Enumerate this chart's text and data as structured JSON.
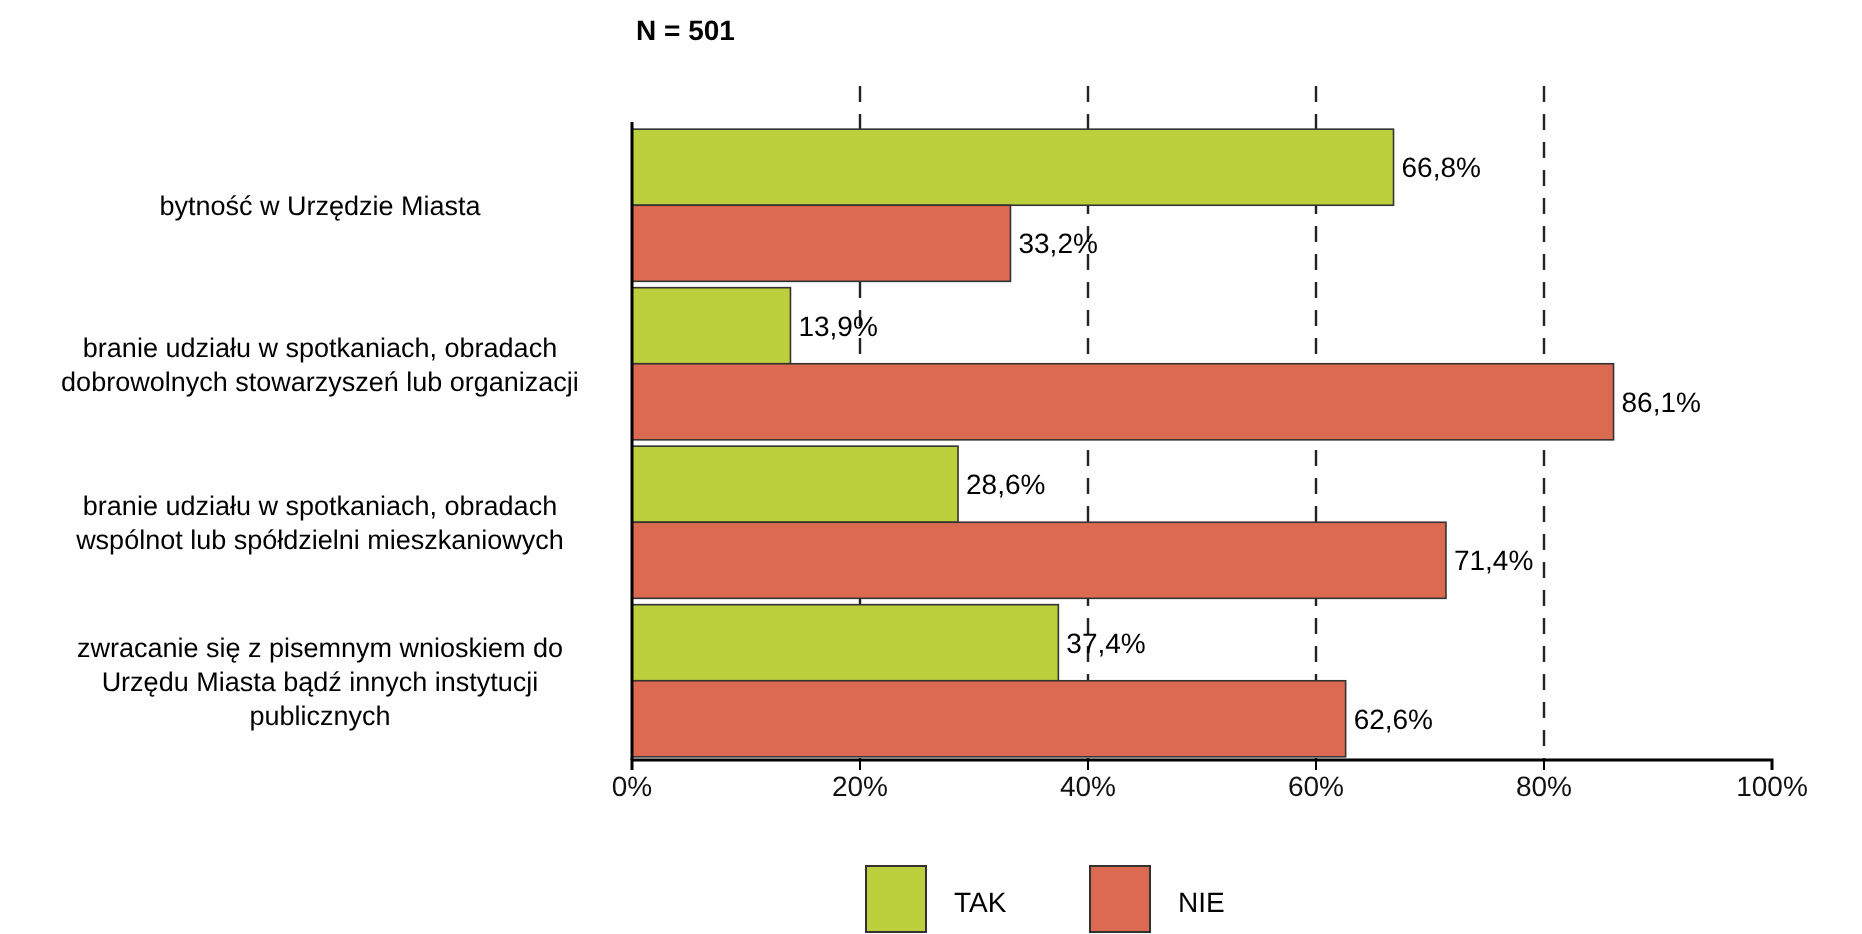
{
  "chart_data": {
    "type": "bar",
    "orientation": "horizontal",
    "title": "N = 501",
    "categories": [
      "bytność w Urzędzie Miasta",
      "branie udziału w spotkaniach, obradach dobrowolnych stowarzyszeń lub organizacji",
      "branie udziału w spotkaniach, obradach wspólnot lub spółdzielni mieszkaniowych",
      "zwracanie się z pisemnym wnioskiem do Urzędu Miasta bądź innych instytucji publicznych"
    ],
    "series": [
      {
        "name": "TAK",
        "color": "#bccf3c",
        "values": [
          66.8,
          13.9,
          28.6,
          37.4
        ],
        "value_labels": [
          "66,8%",
          "13,9%",
          "28,6%",
          "37,4%"
        ]
      },
      {
        "name": "NIE",
        "color": "#dc6a50",
        "values": [
          33.2,
          86.1,
          71.4,
          62.6
        ],
        "value_labels": [
          "33,2%",
          "86,1%",
          "71,4%",
          "62,6%"
        ]
      }
    ],
    "xlim": [
      0,
      100
    ],
    "xticks": [
      {
        "value": 0,
        "label": "0%"
      },
      {
        "value": 20,
        "label": "20%"
      },
      {
        "value": 40,
        "label": "40%"
      },
      {
        "value": 60,
        "label": "60%"
      },
      {
        "value": 80,
        "label": "80%"
      },
      {
        "value": 100,
        "label": "100%"
      }
    ],
    "grid": "x",
    "line_style": "dashed",
    "legend": "bottom"
  }
}
